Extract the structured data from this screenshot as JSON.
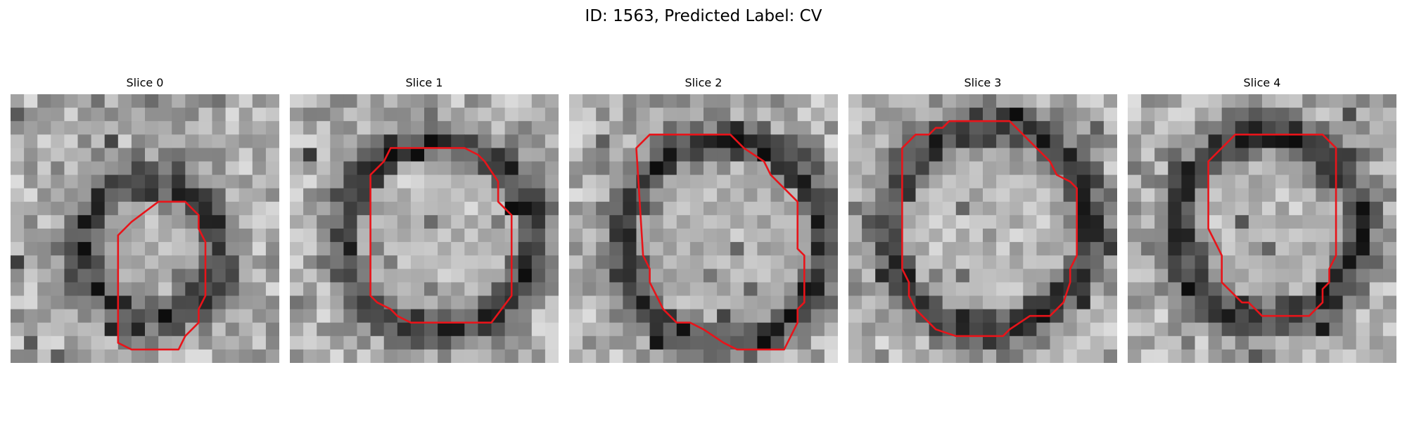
{
  "figure": {
    "title": "ID: 1563, Predicted Label: CV"
  },
  "colors": {
    "contour": "#e8141a",
    "background": "#ffffff"
  },
  "slices": [
    {
      "label": "Slice 0",
      "image": "grayscale microscopy patch",
      "contour": [
        [
          11,
          8
        ],
        [
          13,
          8
        ],
        [
          14,
          9
        ],
        [
          14,
          10
        ],
        [
          14.5,
          11
        ],
        [
          14.5,
          15
        ],
        [
          14,
          16
        ],
        [
          14,
          17
        ],
        [
          13,
          18
        ],
        [
          12.5,
          19
        ],
        [
          10,
          19
        ],
        [
          9,
          19
        ],
        [
          8,
          18.5
        ],
        [
          8,
          10.5
        ],
        [
          9,
          9.5
        ]
      ]
    },
    {
      "label": "Slice 1",
      "image": "grayscale microscopy patch",
      "contour": [
        [
          7,
          5
        ],
        [
          7.5,
          4
        ],
        [
          10,
          4
        ],
        [
          13,
          4
        ],
        [
          14,
          4.5
        ],
        [
          14.5,
          5
        ],
        [
          15.5,
          6.5
        ],
        [
          15.5,
          8
        ],
        [
          16.5,
          9
        ],
        [
          16.5,
          10
        ],
        [
          16.5,
          13.5
        ],
        [
          16.5,
          15
        ],
        [
          15,
          17
        ],
        [
          12,
          17
        ],
        [
          9,
          17
        ],
        [
          8,
          16.5
        ],
        [
          7.5,
          16
        ],
        [
          6.5,
          15.5
        ],
        [
          6,
          15
        ],
        [
          6,
          6
        ]
      ]
    },
    {
      "label": "Slice 2",
      "image": "grayscale microscopy patch",
      "contour": [
        [
          5,
          4
        ],
        [
          6,
          3
        ],
        [
          9,
          3
        ],
        [
          12,
          3
        ],
        [
          13,
          4
        ],
        [
          14.5,
          5
        ],
        [
          15,
          6
        ],
        [
          16,
          7
        ],
        [
          16.5,
          7.5
        ],
        [
          17,
          8
        ],
        [
          17,
          10
        ],
        [
          17,
          11.5
        ],
        [
          17.5,
          12
        ],
        [
          17.5,
          13.5
        ],
        [
          17.5,
          15.5
        ],
        [
          17,
          16
        ],
        [
          17,
          17
        ],
        [
          16.5,
          18
        ],
        [
          16,
          19
        ],
        [
          14,
          19
        ],
        [
          12.5,
          19
        ],
        [
          11.5,
          18.5
        ],
        [
          10,
          17.5
        ],
        [
          9,
          17
        ],
        [
          8,
          17
        ],
        [
          7,
          16
        ],
        [
          6.5,
          15
        ],
        [
          6,
          14
        ],
        [
          6,
          13
        ],
        [
          5.5,
          12
        ]
      ]
    },
    {
      "label": "Slice 3",
      "image": "grayscale microscopy patch",
      "contour": [
        [
          4,
          4
        ],
        [
          4.5,
          3.5
        ],
        [
          5,
          3
        ],
        [
          6,
          3
        ],
        [
          6.5,
          2.5
        ],
        [
          7,
          2.5
        ],
        [
          7.5,
          2
        ],
        [
          9,
          2
        ],
        [
          12,
          2
        ],
        [
          13,
          3
        ],
        [
          14,
          4
        ],
        [
          15,
          5
        ],
        [
          15.5,
          6
        ],
        [
          16.5,
          6.5
        ],
        [
          17,
          7
        ],
        [
          17,
          10
        ],
        [
          17,
          12
        ],
        [
          16.5,
          13
        ],
        [
          16.5,
          14
        ],
        [
          16,
          15.5
        ],
        [
          15.5,
          16
        ],
        [
          15,
          16.5
        ],
        [
          13.5,
          16.5
        ],
        [
          12,
          17.5
        ],
        [
          11.5,
          18
        ],
        [
          8,
          18
        ],
        [
          6.5,
          17.5
        ],
        [
          5.5,
          16.5
        ],
        [
          5,
          16
        ],
        [
          4.5,
          15
        ],
        [
          4.5,
          14
        ],
        [
          4,
          13
        ],
        [
          4,
          10
        ],
        [
          4,
          7
        ]
      ]
    },
    {
      "label": "Slice 4",
      "image": "grayscale microscopy patch",
      "contour": [
        [
          7,
          4
        ],
        [
          8,
          3
        ],
        [
          9.5,
          3
        ],
        [
          12,
          3
        ],
        [
          14.5,
          3
        ],
        [
          15.5,
          4
        ],
        [
          15.5,
          6
        ],
        [
          15.5,
          8
        ],
        [
          15.5,
          10
        ],
        [
          15.5,
          11.5
        ],
        [
          15.5,
          12
        ],
        [
          15,
          13
        ],
        [
          15,
          14
        ],
        [
          14.5,
          14.5
        ],
        [
          14.5,
          15.5
        ],
        [
          14,
          16
        ],
        [
          13.5,
          16.5
        ],
        [
          12,
          16.5
        ],
        [
          11,
          16.5
        ],
        [
          10,
          16.5
        ],
        [
          9.5,
          16
        ],
        [
          9,
          15.5
        ],
        [
          8.5,
          15.5
        ],
        [
          8,
          15
        ],
        [
          7,
          14
        ],
        [
          7,
          13
        ],
        [
          7,
          12
        ],
        [
          6.5,
          11
        ],
        [
          6,
          10
        ],
        [
          6,
          7
        ],
        [
          6,
          5
        ]
      ]
    }
  ]
}
